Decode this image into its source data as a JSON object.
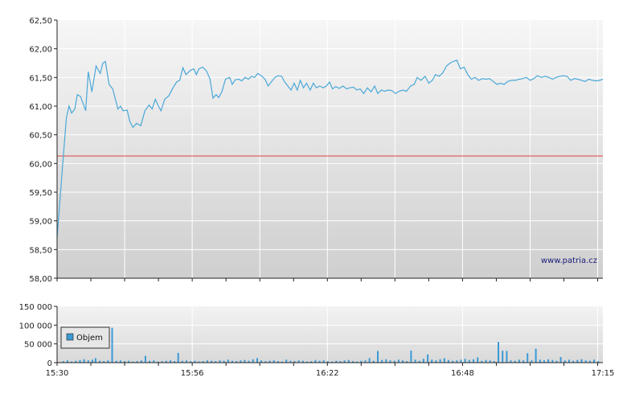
{
  "watermark": "www.patria.cz",
  "colors": {
    "price_line": "#4aa8d8",
    "reference_line": "#e04040",
    "volume_bar": "#3a9ad6",
    "legend_swatch": "#3a9ad6"
  },
  "chart_data": [
    {
      "type": "line",
      "name": "price",
      "x_ticks": [
        "15:30",
        "15:56",
        "16:22",
        "16:48",
        "17:15"
      ],
      "y_ticks": [
        "62,50",
        "62,00",
        "61,50",
        "61,00",
        "60,50",
        "60,00",
        "59,50",
        "59,00",
        "58,50",
        "58,00"
      ],
      "ylim": [
        58.0,
        62.5
      ],
      "xlim_minutes": [
        0,
        105
      ],
      "reference_value": 60.13,
      "grid": true,
      "values": [
        [
          0.0,
          58.7
        ],
        [
          1.0,
          59.9
        ],
        [
          1.8,
          60.8
        ],
        [
          2.3,
          61.0
        ],
        [
          2.8,
          60.88
        ],
        [
          3.4,
          60.95
        ],
        [
          3.9,
          61.2
        ],
        [
          4.5,
          61.17
        ],
        [
          5.0,
          61.05
        ],
        [
          5.5,
          60.92
        ],
        [
          6.0,
          61.6
        ],
        [
          6.7,
          61.25
        ],
        [
          7.5,
          61.7
        ],
        [
          8.3,
          61.57
        ],
        [
          8.8,
          61.75
        ],
        [
          9.3,
          61.78
        ],
        [
          10.0,
          61.38
        ],
        [
          10.7,
          61.3
        ],
        [
          11.7,
          60.95
        ],
        [
          12.2,
          61.0
        ],
        [
          12.7,
          60.92
        ],
        [
          13.5,
          60.93
        ],
        [
          14.0,
          60.73
        ],
        [
          14.6,
          60.63
        ],
        [
          15.3,
          60.7
        ],
        [
          16.1,
          60.66
        ],
        [
          16.9,
          60.92
        ],
        [
          17.7,
          61.02
        ],
        [
          18.3,
          60.95
        ],
        [
          18.9,
          61.12
        ],
        [
          19.5,
          61.0
        ],
        [
          20.0,
          60.92
        ],
        [
          20.7,
          61.12
        ],
        [
          21.5,
          61.18
        ],
        [
          22.3,
          61.32
        ],
        [
          23.0,
          61.42
        ],
        [
          23.6,
          61.45
        ],
        [
          24.2,
          61.67
        ],
        [
          24.8,
          61.55
        ],
        [
          25.6,
          61.62
        ],
        [
          26.3,
          61.65
        ],
        [
          26.8,
          61.55
        ],
        [
          27.3,
          61.65
        ],
        [
          28.0,
          61.68
        ],
        [
          28.7,
          61.62
        ],
        [
          29.4,
          61.48
        ],
        [
          30.0,
          61.14
        ],
        [
          30.6,
          61.2
        ],
        [
          31.1,
          61.15
        ],
        [
          31.7,
          61.25
        ],
        [
          32.4,
          61.47
        ],
        [
          33.2,
          61.5
        ],
        [
          33.7,
          61.38
        ],
        [
          34.3,
          61.46
        ],
        [
          35.0,
          61.47
        ],
        [
          35.5,
          61.44
        ],
        [
          36.2,
          61.5
        ],
        [
          36.8,
          61.47
        ],
        [
          37.4,
          61.52
        ],
        [
          38.0,
          61.5
        ],
        [
          38.6,
          61.57
        ],
        [
          39.3,
          61.53
        ],
        [
          40.0,
          61.47
        ],
        [
          40.6,
          61.35
        ],
        [
          41.2,
          61.42
        ],
        [
          41.9,
          61.5
        ],
        [
          42.5,
          61.53
        ],
        [
          43.2,
          61.52
        ],
        [
          43.8,
          61.42
        ],
        [
          44.4,
          61.35
        ],
        [
          45.0,
          61.28
        ],
        [
          45.6,
          61.4
        ],
        [
          46.2,
          61.28
        ],
        [
          46.8,
          61.45
        ],
        [
          47.4,
          61.32
        ],
        [
          48.0,
          61.4
        ],
        [
          48.7,
          61.28
        ],
        [
          49.3,
          61.4
        ],
        [
          49.9,
          61.32
        ],
        [
          50.5,
          61.35
        ],
        [
          51.2,
          61.32
        ],
        [
          51.8,
          61.35
        ],
        [
          52.4,
          61.42
        ],
        [
          53.0,
          61.3
        ],
        [
          53.6,
          61.34
        ],
        [
          54.3,
          61.31
        ],
        [
          55.0,
          61.35
        ],
        [
          55.7,
          61.3
        ],
        [
          56.3,
          61.32
        ],
        [
          57.0,
          61.33
        ],
        [
          57.7,
          61.28
        ],
        [
          58.3,
          61.3
        ],
        [
          59.0,
          61.22
        ],
        [
          59.7,
          61.32
        ],
        [
          60.4,
          61.25
        ],
        [
          61.1,
          61.35
        ],
        [
          61.7,
          61.22
        ],
        [
          62.4,
          61.28
        ],
        [
          63.0,
          61.26
        ],
        [
          63.7,
          61.28
        ],
        [
          64.4,
          61.27
        ],
        [
          65.1,
          61.22
        ],
        [
          65.8,
          61.26
        ],
        [
          66.5,
          61.28
        ],
        [
          67.2,
          61.26
        ],
        [
          68.0,
          61.35
        ],
        [
          68.7,
          61.38
        ],
        [
          69.3,
          61.5
        ],
        [
          70.0,
          61.45
        ],
        [
          70.8,
          61.52
        ],
        [
          71.5,
          61.4
        ],
        [
          72.2,
          61.45
        ],
        [
          72.8,
          61.55
        ],
        [
          73.5,
          61.52
        ],
        [
          74.2,
          61.58
        ],
        [
          74.9,
          61.7
        ],
        [
          75.6,
          61.75
        ],
        [
          76.2,
          61.78
        ],
        [
          76.9,
          61.8
        ],
        [
          77.6,
          61.65
        ],
        [
          78.3,
          61.68
        ],
        [
          79.0,
          61.55
        ],
        [
          79.7,
          61.47
        ],
        [
          80.4,
          61.5
        ],
        [
          81.1,
          61.45
        ],
        [
          81.8,
          61.48
        ],
        [
          82.5,
          61.47
        ],
        [
          83.2,
          61.48
        ],
        [
          83.9,
          61.43
        ],
        [
          84.6,
          61.38
        ],
        [
          85.3,
          61.4
        ],
        [
          86.0,
          61.38
        ],
        [
          86.7,
          61.43
        ],
        [
          87.4,
          61.45
        ],
        [
          88.2,
          61.45
        ],
        [
          88.9,
          61.47
        ],
        [
          89.6,
          61.48
        ],
        [
          90.3,
          61.5
        ],
        [
          91.0,
          61.45
        ],
        [
          91.7,
          61.48
        ],
        [
          92.4,
          61.53
        ],
        [
          93.2,
          61.5
        ],
        [
          93.9,
          61.52
        ],
        [
          94.6,
          61.5
        ],
        [
          95.3,
          61.47
        ],
        [
          96.0,
          61.5
        ],
        [
          96.7,
          61.52
        ],
        [
          97.4,
          61.53
        ],
        [
          98.1,
          61.52
        ],
        [
          98.8,
          61.45
        ],
        [
          99.5,
          61.48
        ],
        [
          100.2,
          61.47
        ],
        [
          100.9,
          61.45
        ],
        [
          101.6,
          61.43
        ],
        [
          102.3,
          61.47
        ],
        [
          103.0,
          61.45
        ],
        [
          103.7,
          61.44
        ],
        [
          104.4,
          61.45
        ],
        [
          105.0,
          61.47
        ]
      ]
    },
    {
      "type": "bar",
      "name": "Objem",
      "x_ticks": [
        "15:30",
        "15:56",
        "16:22",
        "16:48",
        "17:15"
      ],
      "y_ticks": [
        "150 000",
        "100 000",
        "50 000",
        "0"
      ],
      "ylim": [
        0,
        150000
      ],
      "xlim_minutes": [
        0,
        105
      ],
      "legend": "Objem",
      "grid": true,
      "values": [
        [
          1.2,
          4000
        ],
        [
          2.0,
          6000
        ],
        [
          2.8,
          3000
        ],
        [
          3.6,
          5000
        ],
        [
          4.4,
          7000
        ],
        [
          5.2,
          9000
        ],
        [
          6.0,
          6000
        ],
        [
          6.8,
          8000
        ],
        [
          7.4,
          12000
        ],
        [
          8.2,
          5000
        ],
        [
          9.0,
          4000
        ],
        [
          9.8,
          6000
        ],
        [
          10.6,
          93000
        ],
        [
          11.4,
          5000
        ],
        [
          12.2,
          6000
        ],
        [
          13.0,
          4000
        ],
        [
          13.8,
          5000
        ],
        [
          14.6,
          3000
        ],
        [
          15.4,
          4000
        ],
        [
          16.2,
          6000
        ],
        [
          17.0,
          18000
        ],
        [
          17.8,
          5000
        ],
        [
          18.6,
          6000
        ],
        [
          19.4,
          3000
        ],
        [
          20.2,
          4000
        ],
        [
          21.0,
          5000
        ],
        [
          21.8,
          6000
        ],
        [
          22.6,
          4000
        ],
        [
          23.3,
          26000
        ],
        [
          24.1,
          5000
        ],
        [
          24.9,
          6000
        ],
        [
          25.7,
          4000
        ],
        [
          26.5,
          5000
        ],
        [
          27.3,
          3000
        ],
        [
          28.1,
          4000
        ],
        [
          28.9,
          6000
        ],
        [
          29.7,
          5000
        ],
        [
          30.5,
          4000
        ],
        [
          31.3,
          6000
        ],
        [
          32.1,
          5000
        ],
        [
          32.9,
          8000
        ],
        [
          33.7,
          5000
        ],
        [
          34.5,
          4000
        ],
        [
          35.3,
          6000
        ],
        [
          36.1,
          7000
        ],
        [
          36.9,
          5000
        ],
        [
          37.7,
          9000
        ],
        [
          38.5,
          12000
        ],
        [
          39.3,
          6000
        ],
        [
          40.1,
          4000
        ],
        [
          40.9,
          5000
        ],
        [
          41.7,
          6000
        ],
        [
          42.5,
          4000
        ],
        [
          43.3,
          3000
        ],
        [
          44.1,
          8000
        ],
        [
          44.9,
          5000
        ],
        [
          45.7,
          4000
        ],
        [
          46.5,
          6000
        ],
        [
          47.3,
          5000
        ],
        [
          48.1,
          3000
        ],
        [
          48.9,
          4000
        ],
        [
          49.7,
          7000
        ],
        [
          50.5,
          5000
        ],
        [
          51.3,
          6000
        ],
        [
          52.1,
          4000
        ],
        [
          52.9,
          3000
        ],
        [
          53.7,
          5000
        ],
        [
          54.5,
          4000
        ],
        [
          55.3,
          6000
        ],
        [
          56.1,
          7000
        ],
        [
          56.9,
          4000
        ],
        [
          57.7,
          3000
        ],
        [
          58.5,
          5000
        ],
        [
          59.3,
          6000
        ],
        [
          60.1,
          12000
        ],
        [
          60.9,
          5000
        ],
        [
          61.7,
          31000
        ],
        [
          62.5,
          7000
        ],
        [
          63.3,
          9000
        ],
        [
          64.1,
          6000
        ],
        [
          64.9,
          5000
        ],
        [
          65.7,
          8000
        ],
        [
          66.5,
          6000
        ],
        [
          67.3,
          4000
        ],
        [
          68.1,
          32000
        ],
        [
          68.9,
          8000
        ],
        [
          69.7,
          5000
        ],
        [
          70.5,
          10000
        ],
        [
          71.3,
          22000
        ],
        [
          72.1,
          8000
        ],
        [
          72.9,
          6000
        ],
        [
          73.7,
          9000
        ],
        [
          74.5,
          12000
        ],
        [
          75.3,
          7000
        ],
        [
          76.1,
          5000
        ],
        [
          76.9,
          6000
        ],
        [
          77.7,
          8000
        ],
        [
          78.5,
          10000
        ],
        [
          79.3,
          7000
        ],
        [
          80.1,
          9000
        ],
        [
          80.9,
          14000
        ],
        [
          81.7,
          5000
        ],
        [
          82.5,
          7000
        ],
        [
          83.3,
          6000
        ],
        [
          84.1,
          4000
        ],
        [
          84.9,
          55000
        ],
        [
          85.7,
          32000
        ],
        [
          86.5,
          31000
        ],
        [
          87.3,
          6000
        ],
        [
          88.1,
          5000
        ],
        [
          88.9,
          8000
        ],
        [
          89.7,
          6000
        ],
        [
          90.5,
          25000
        ],
        [
          91.3,
          6000
        ],
        [
          92.1,
          37000
        ],
        [
          92.9,
          8000
        ],
        [
          93.7,
          6000
        ],
        [
          94.5,
          9000
        ],
        [
          95.3,
          7000
        ],
        [
          96.1,
          5000
        ],
        [
          96.9,
          15000
        ],
        [
          97.7,
          6000
        ],
        [
          98.5,
          8000
        ],
        [
          99.3,
          5000
        ],
        [
          100.1,
          7000
        ],
        [
          100.9,
          9000
        ],
        [
          101.7,
          6000
        ],
        [
          102.5,
          5000
        ],
        [
          103.3,
          8000
        ],
        [
          104.1,
          4000
        ]
      ]
    }
  ]
}
